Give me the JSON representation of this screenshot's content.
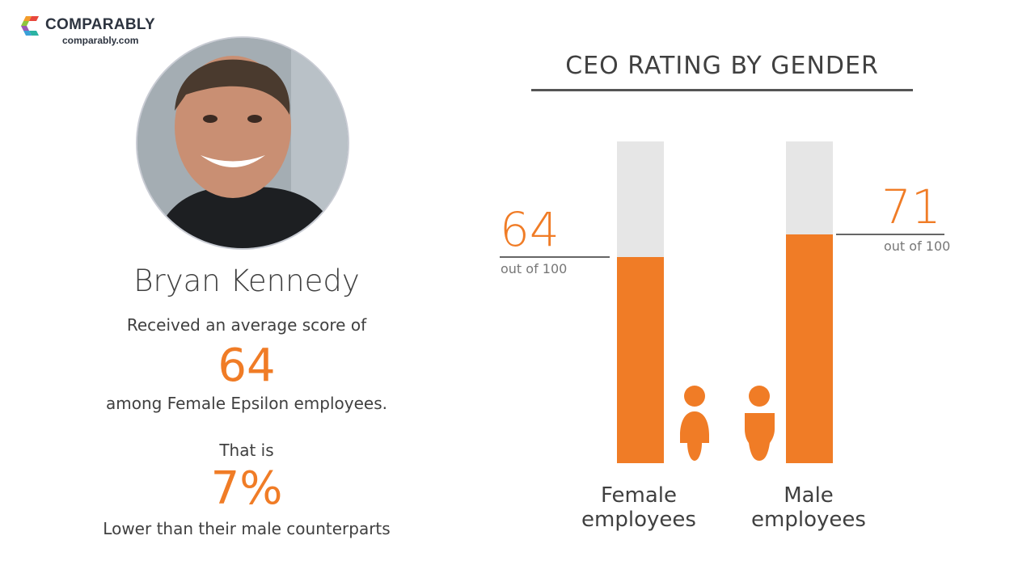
{
  "logo": {
    "brand": "COMPARABLY",
    "url": "comparably.com"
  },
  "ceo": {
    "name": "Bryan Kennedy",
    "line1": "Received an average score of",
    "score": "64",
    "line2": "among Female Epsilon employees.",
    "line3": "That is",
    "difference": "7%",
    "line4": "Lower than their male counterparts"
  },
  "colors": {
    "accent": "#f07c26",
    "track": "#e6e6e6",
    "text": "#404040"
  },
  "chart_data": {
    "type": "bar",
    "title": "CEO RATING BY GENDER",
    "categories": [
      "Female employees",
      "Male employees"
    ],
    "category_lines": [
      [
        "Female",
        "employees"
      ],
      [
        "Male",
        "employees"
      ]
    ],
    "values": [
      64,
      71
    ],
    "value_labels": [
      "64",
      "71"
    ],
    "value_suffix": "out of 100",
    "ylim": [
      0,
      100
    ],
    "icons": [
      "female-person-icon",
      "male-person-icon"
    ],
    "grid": false
  }
}
